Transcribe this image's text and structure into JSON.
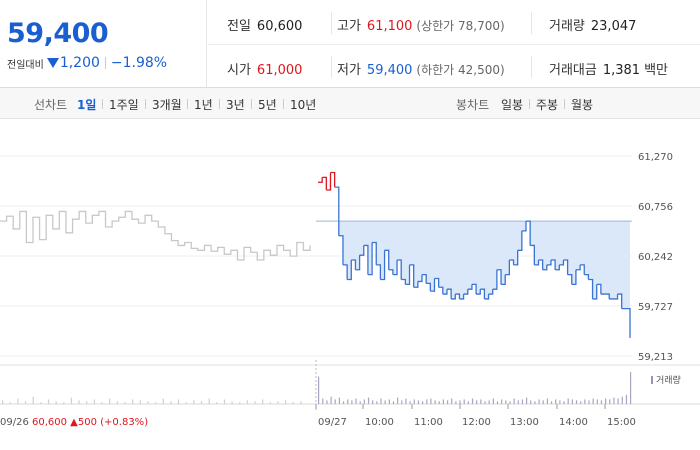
{
  "summary": {
    "price": "59,400",
    "change_label": "전일대비",
    "change_value": "1,200",
    "change_rate": "−1.98%"
  },
  "stats": {
    "prev_close": {
      "label": "전일",
      "value": "60,600"
    },
    "open": {
      "label": "시가",
      "value": "61,000"
    },
    "high": {
      "label": "고가",
      "value": "61,100",
      "sub": "(상한가 78,700)"
    },
    "low": {
      "label": "저가",
      "value": "59,400",
      "sub": "(하한가 42,500)"
    },
    "volume": {
      "label": "거래량",
      "value": "23,047"
    },
    "amount": {
      "label": "거래대금",
      "value": "1,381",
      "unit": "백만"
    }
  },
  "toolbar": {
    "line_label": "선차트",
    "line_ranges": [
      "1일",
      "1주일",
      "3개월",
      "1년",
      "3년",
      "5년",
      "10년"
    ],
    "line_active": "1일",
    "candle_label": "봉차트",
    "candle_ranges": [
      "일봉",
      "주봉",
      "월봉"
    ]
  },
  "chart_data": {
    "type": "line",
    "ylim": [
      59213,
      61270
    ],
    "y_ticks": [
      "61,270",
      "60,756",
      "60,242",
      "59,727",
      "59,213"
    ],
    "x_ticks": [
      "09/27",
      "10:00",
      "11:00",
      "12:00",
      "13:00",
      "14:00",
      "15:00"
    ],
    "prev_day_date": "09/26",
    "prev_day_price": "60,600",
    "prev_day_change": "▲500",
    "prev_day_rate": "(+0.83%)",
    "volume_label": "거래량",
    "reference_price": 60600,
    "prev_day_series": [
      60600,
      60650,
      60520,
      60700,
      60380,
      60640,
      60410,
      60660,
      60520,
      60700,
      60480,
      60620,
      60700,
      60580,
      60660,
      60700,
      60540,
      60600,
      60640,
      60700,
      60620,
      60580,
      60660,
      60600,
      60540,
      60470,
      60400,
      60350,
      60380,
      60320,
      60300,
      60350,
      60290,
      60330,
      60260,
      60300,
      60200,
      60330,
      60280,
      60200,
      60300,
      60250,
      60350,
      60300,
      60240,
      60380,
      60300,
      60350
    ],
    "today_series": [
      61000,
      61050,
      60920,
      61100,
      60950,
      60450,
      60150,
      60000,
      60200,
      60100,
      60250,
      60350,
      60050,
      60380,
      60150,
      60000,
      60300,
      60100,
      60050,
      60200,
      60000,
      59950,
      60150,
      59920,
      59980,
      60050,
      59960,
      59880,
      60010,
      59920,
      59850,
      59900,
      59800,
      59850,
      59800,
      59850,
      59900,
      59950,
      59850,
      59900,
      59800,
      59850,
      59900,
      60100,
      59950,
      60050,
      60200,
      60150,
      60300,
      60500,
      60600,
      60350,
      60150,
      60200,
      60100,
      60150,
      60200,
      60100,
      60150,
      60200,
      60050,
      59950,
      60100,
      60150,
      60050,
      60000,
      59800,
      59950,
      59850,
      59850,
      59800,
      59800,
      59850,
      59700,
      59700,
      59400
    ],
    "volume_prev": [
      4,
      2,
      6,
      3,
      8,
      2,
      5,
      3,
      2,
      7,
      4,
      3,
      5,
      2,
      6,
      3,
      2,
      5,
      4,
      3,
      2,
      6,
      3,
      5,
      2,
      4,
      3,
      6,
      2,
      5,
      3,
      2,
      4,
      3,
      5,
      2,
      3,
      4,
      2,
      3
    ],
    "volume_today": [
      30,
      6,
      4,
      8,
      5,
      7,
      3,
      5,
      4,
      6,
      3,
      5,
      7,
      4,
      3,
      6,
      4,
      5,
      3,
      7,
      4,
      6,
      3,
      5,
      4,
      3,
      5,
      6,
      4,
      3,
      5,
      4,
      6,
      3,
      4,
      5,
      3,
      6,
      4,
      5,
      3,
      4,
      6,
      3,
      5,
      4,
      3,
      6,
      4,
      5,
      7,
      4,
      3,
      5,
      4,
      6,
      3,
      5,
      4,
      3,
      6,
      5,
      4,
      3,
      5,
      4,
      6,
      5,
      4,
      6,
      5,
      7,
      6,
      8,
      10,
      35
    ]
  },
  "colors": {
    "up": "#e0161d",
    "down": "#1a5fd1",
    "line_today": "#3a73d4",
    "line_prev": "#c8c8c8",
    "fill_today": "#dbe8fa"
  }
}
